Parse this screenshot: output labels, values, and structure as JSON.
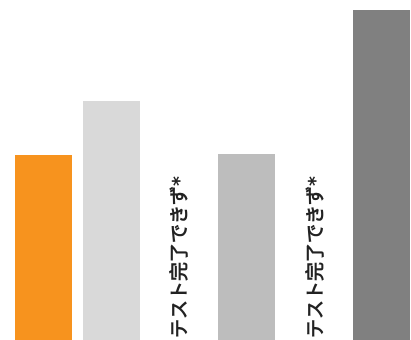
{
  "chart_data": {
    "type": "bar",
    "title": "",
    "xlabel": "",
    "ylabel": "",
    "ylim": [
      0,
      330
    ],
    "grid": false,
    "legend": "none",
    "bars": [
      {
        "value": 185,
        "color": "#F7931E"
      },
      {
        "value": 239,
        "color": "#D9D9D9"
      },
      {
        "value": 0,
        "label": "テスト完了できず*"
      },
      {
        "value": 186,
        "color": "#BDBDBD"
      },
      {
        "value": 0,
        "label": "テスト完了できず*"
      },
      {
        "value": 330,
        "color": "#808080"
      }
    ]
  }
}
